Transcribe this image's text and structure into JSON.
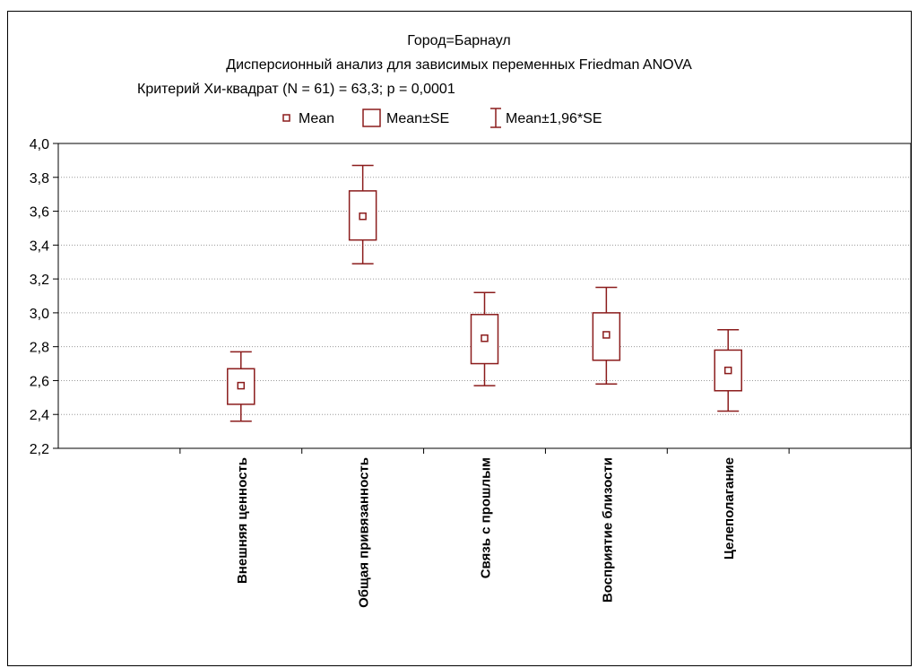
{
  "chart_data": {
    "type": "box",
    "title_lines": [
      "Город=Барнаул",
      "Дисперсионный анализ для зависимых переменных Friedman ANOVA",
      "Критерий Хи-квадрат (N = 61) = 63,3; p = 0,0001"
    ],
    "legend": {
      "position": "top",
      "entries": [
        "Mean",
        "Mean±SE",
        "Mean±1,96*SE"
      ]
    },
    "ylim": [
      2.2,
      4.0
    ],
    "yticks": [
      "2,2",
      "2,4",
      "2,6",
      "2,8",
      "3,0",
      "3,2",
      "3,4",
      "3,6",
      "3,8",
      "4,0"
    ],
    "ytick_values": [
      2.2,
      2.4,
      2.6,
      2.8,
      3.0,
      3.2,
      3.4,
      3.6,
      3.8,
      4.0
    ],
    "grid": {
      "horizontal": true,
      "style": "dotted"
    },
    "categories": [
      "Внешняя ценность",
      "Общая привязанность",
      "Связь с прошлым",
      "Восприятие близости",
      "Целеполагание"
    ],
    "category_slots": [
      2,
      3,
      4,
      5,
      6
    ],
    "slot_count": 7,
    "series": [
      {
        "name": "Mean",
        "values": [
          2.57,
          3.57,
          2.85,
          2.87,
          2.66
        ]
      },
      {
        "name": "Mean-SE",
        "values": [
          2.46,
          3.43,
          2.7,
          2.72,
          2.54
        ]
      },
      {
        "name": "Mean+SE",
        "values": [
          2.67,
          3.72,
          2.99,
          3.0,
          2.78
        ]
      },
      {
        "name": "Mean-1,96*SE",
        "values": [
          2.36,
          3.29,
          2.57,
          2.58,
          2.42
        ]
      },
      {
        "name": "Mean+1,96*SE",
        "values": [
          2.77,
          3.87,
          3.12,
          3.15,
          2.9
        ]
      }
    ],
    "colors": {
      "box": "#8b1c1c",
      "grid": "#9a9a9a",
      "axis": "#000000"
    }
  }
}
